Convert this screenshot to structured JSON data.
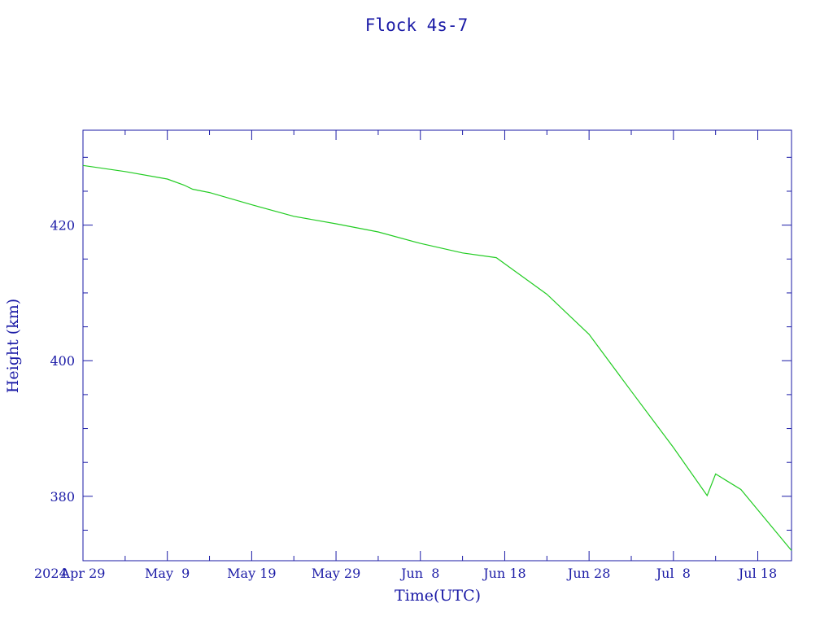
{
  "chart_data": {
    "type": "line",
    "title": "Flock 4s-7",
    "xlabel": "Time(UTC)",
    "ylabel": "Height (km)",
    "x_start_label": "2024",
    "xlim": [
      "2024-04-29",
      "2024-07-22"
    ],
    "ylim": [
      370.5,
      434
    ],
    "x_ticks": [
      {
        "date": "2024-04-29",
        "label": "Apr 29"
      },
      {
        "date": "2024-05-09",
        "label": "May  9"
      },
      {
        "date": "2024-05-19",
        "label": "May 19"
      },
      {
        "date": "2024-05-29",
        "label": "May 29"
      },
      {
        "date": "2024-06-08",
        "label": "Jun  8"
      },
      {
        "date": "2024-06-18",
        "label": "Jun 18"
      },
      {
        "date": "2024-06-28",
        "label": "Jun 28"
      },
      {
        "date": "2024-07-08",
        "label": "Jul  8"
      },
      {
        "date": "2024-07-18",
        "label": "Jul 18"
      }
    ],
    "x_minor_tick_dates": [
      "2024-05-04",
      "2024-05-14",
      "2024-05-24",
      "2024-06-03",
      "2024-06-13",
      "2024-06-23",
      "2024-07-03",
      "2024-07-13"
    ],
    "y_ticks": [
      {
        "value": 380,
        "label": "380"
      },
      {
        "value": 400,
        "label": "400"
      },
      {
        "value": 420,
        "label": "420"
      }
    ],
    "y_minor_ticks": [
      375,
      385,
      390,
      395,
      405,
      410,
      415,
      425,
      430
    ],
    "grid": false,
    "legend": "none",
    "colors": {
      "axis": "#1a1aa6",
      "series": "#22cc22"
    },
    "series": [
      {
        "points": [
          [
            "2024-04-29",
            428.8
          ],
          [
            "2024-05-04",
            427.9
          ],
          [
            "2024-05-09",
            426.8
          ],
          [
            "2024-05-11",
            425.9
          ],
          [
            "2024-05-12",
            425.3
          ],
          [
            "2024-05-14",
            424.8
          ],
          [
            "2024-05-19",
            423.0
          ],
          [
            "2024-05-24",
            421.3
          ],
          [
            "2024-05-29",
            420.2
          ],
          [
            "2024-06-03",
            419.0
          ],
          [
            "2024-06-08",
            417.3
          ],
          [
            "2024-06-13",
            415.9
          ],
          [
            "2024-06-17",
            415.2
          ],
          [
            "2024-06-23",
            409.8
          ],
          [
            "2024-06-28",
            403.9
          ],
          [
            "2024-07-03",
            395.5
          ],
          [
            "2024-07-08",
            387.2
          ],
          [
            "2024-07-12",
            380.1
          ],
          [
            "2024-07-13",
            383.3
          ],
          [
            "2024-07-16",
            381.0
          ],
          [
            "2024-07-18",
            378.0
          ],
          [
            "2024-07-22",
            372.0
          ]
        ]
      }
    ]
  }
}
